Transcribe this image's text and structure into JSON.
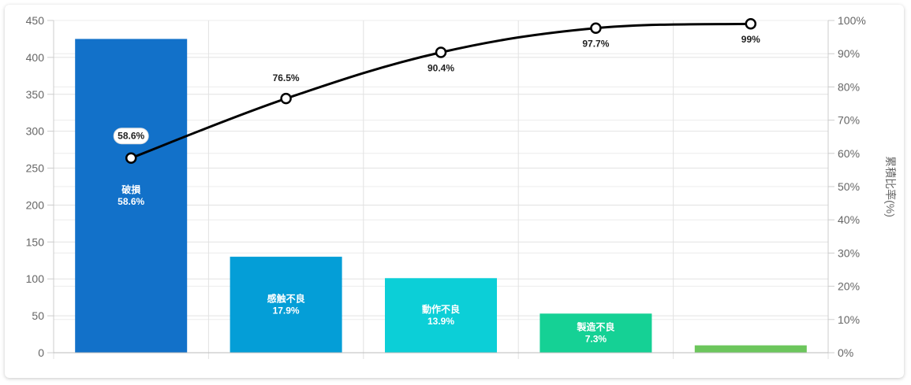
{
  "chart_data": {
    "type": "bar",
    "categories": [
      "破損",
      "感触不良",
      "動作不良",
      "製造不良",
      ""
    ],
    "series": [
      {
        "type": "bar",
        "values": [
          425,
          130,
          101,
          53,
          10
        ],
        "colors": [
          "#1271C9",
          "#049ED7",
          "#0CCFD7",
          "#15D195",
          "#6CC65C"
        ],
        "labels": [
          [
            "破損",
            "58.6%"
          ],
          [
            "感触不良",
            "17.9%"
          ],
          [
            "動作不良",
            "13.9%"
          ],
          [
            "製造不良",
            "7.3%"
          ],
          []
        ]
      },
      {
        "type": "line",
        "axis": "right",
        "values": [
          58.6,
          76.5,
          90.4,
          97.7,
          99
        ],
        "labels": [
          "58.6%",
          "76.5%",
          "90.4%",
          "97.7%",
          "99%"
        ]
      }
    ],
    "ylim": [
      0,
      450
    ],
    "yticks": [
      "0",
      "50",
      "100",
      "150",
      "200",
      "250",
      "300",
      "350",
      "400",
      "450"
    ],
    "ylim_right": [
      0,
      100
    ],
    "yticks_right": [
      "0%",
      "10%",
      "20%",
      "30%",
      "40%",
      "50%",
      "60%",
      "70%",
      "80%",
      "90%",
      "100%"
    ],
    "ylabel_right": "累積比率(%)",
    "grid": true
  }
}
